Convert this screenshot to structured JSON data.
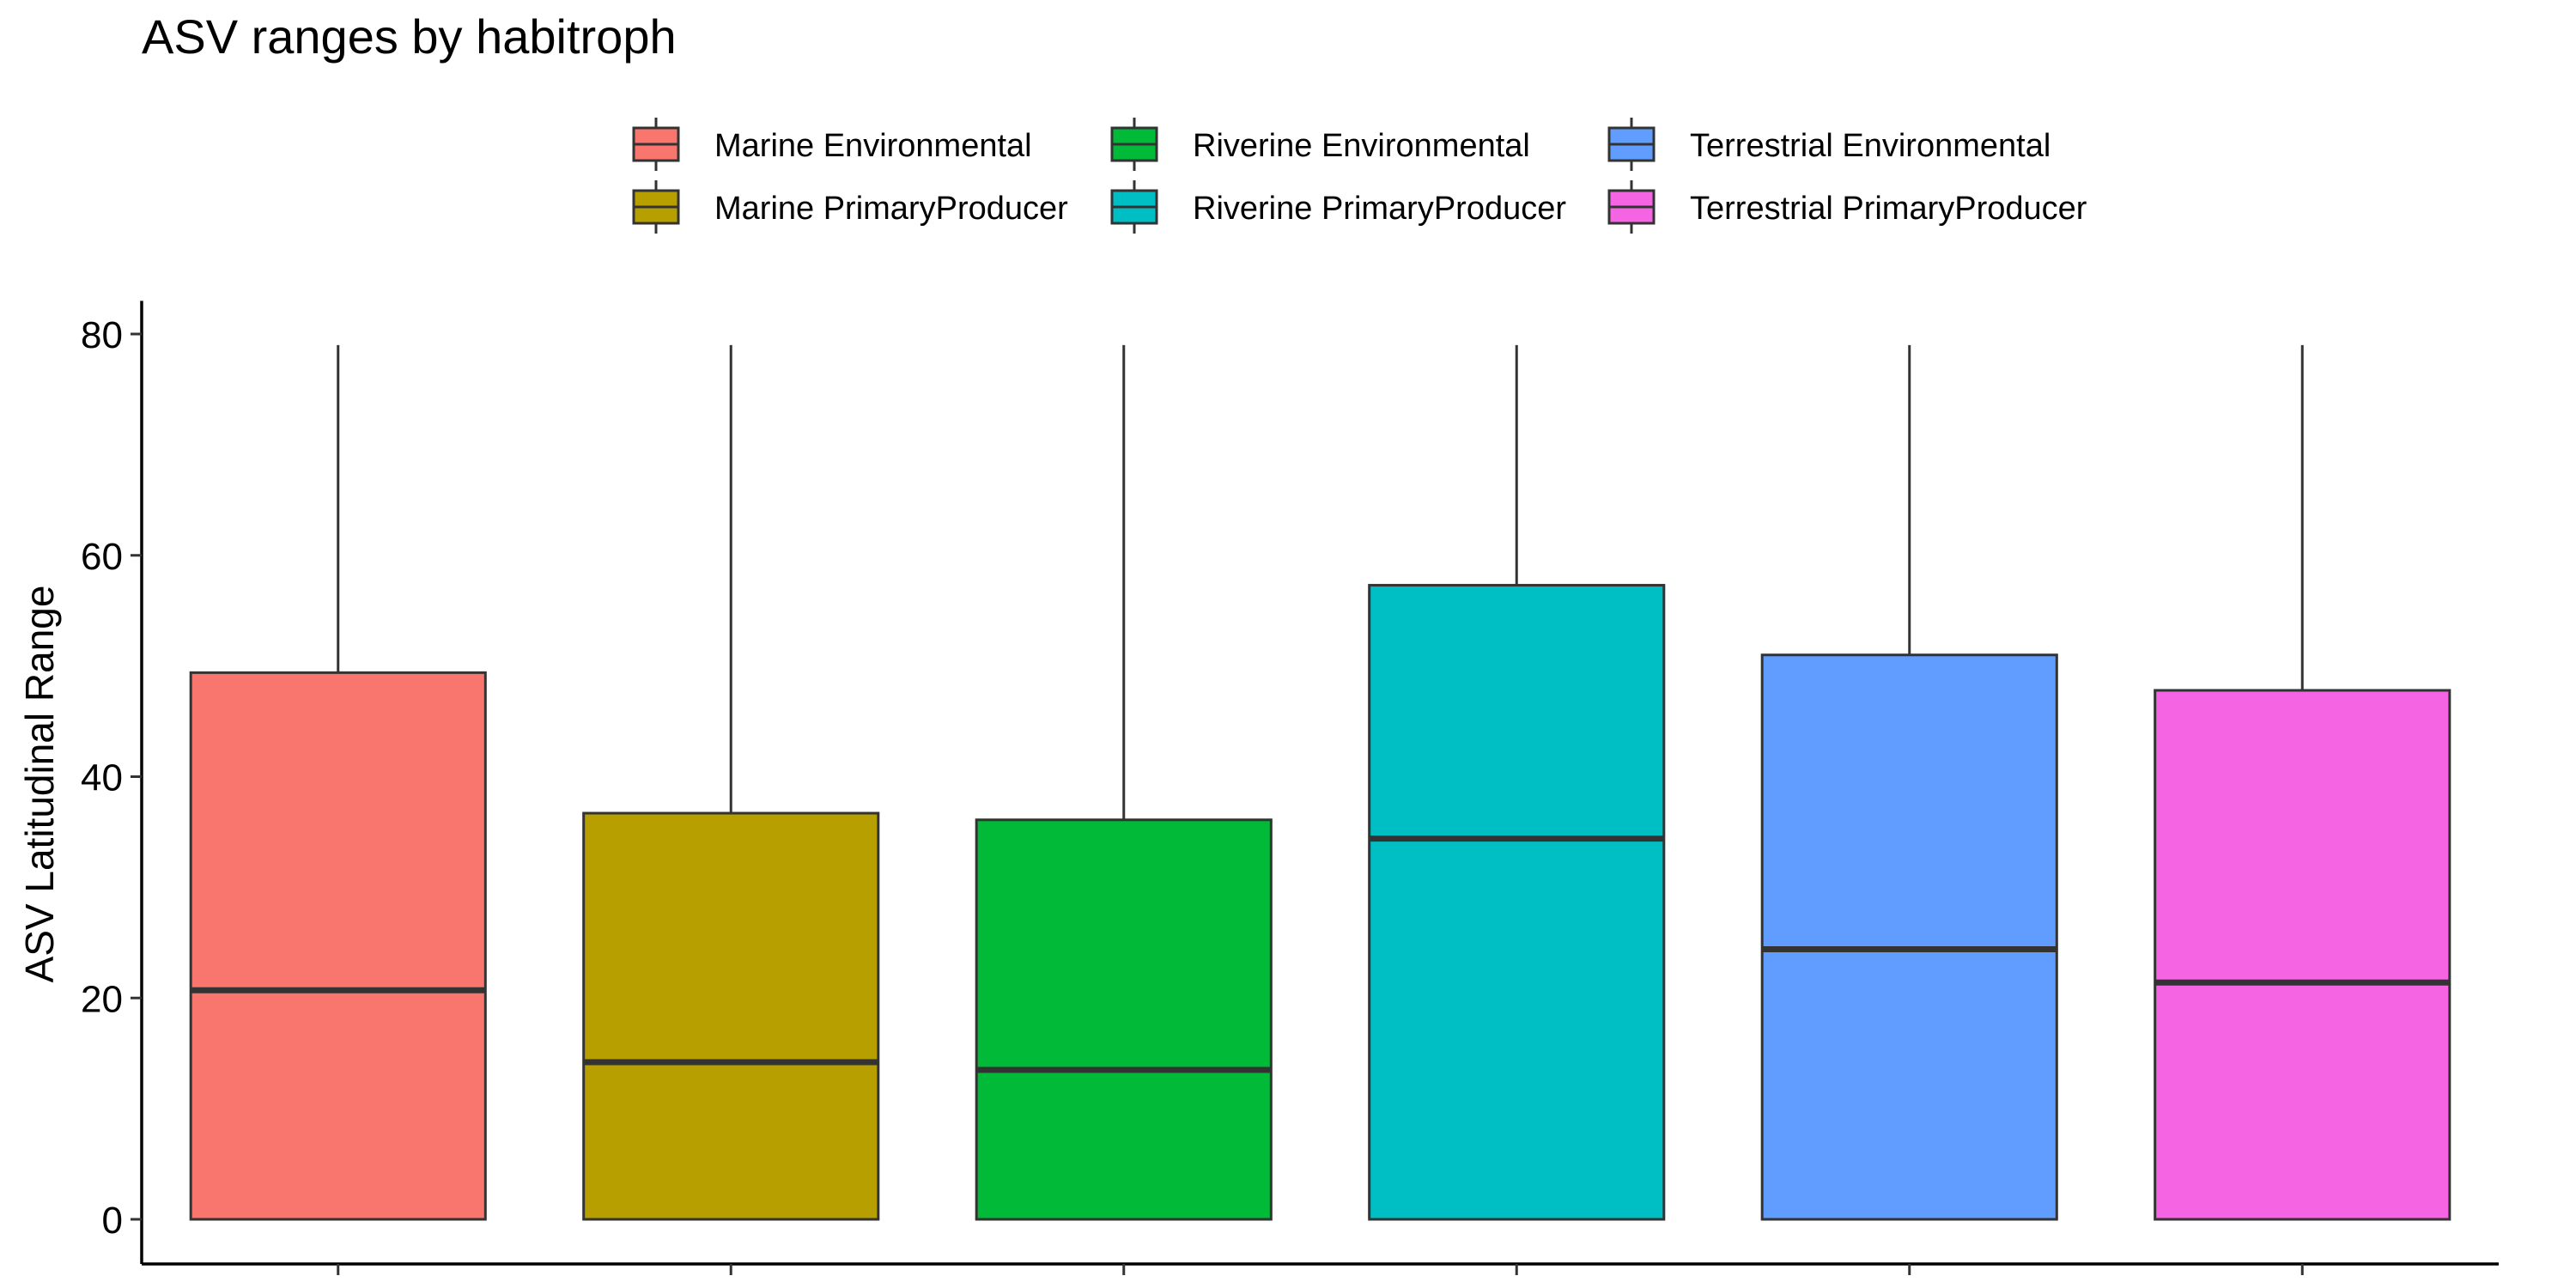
{
  "chart_data": {
    "type": "box",
    "title": "ASV ranges by habitroph",
    "xlabel": "",
    "ylabel": "ASV Latitudinal Range",
    "ylim": [
      -4,
      83
    ],
    "yticks": [
      0,
      20,
      40,
      60,
      80
    ],
    "legend_position": "top",
    "categories": [
      "Marine Environmental",
      "Marine PrimaryProducer",
      "Riverine Environmental",
      "Riverine PrimaryProducer",
      "Terrestrial Environmental",
      "Terrestrial PrimaryProducer"
    ],
    "series": [
      {
        "name": "Marine Environmental",
        "color": "#F8766D",
        "min": 0,
        "q1": 0,
        "median": 20.7,
        "q3": 49.4,
        "max": 79
      },
      {
        "name": "Marine PrimaryProducer",
        "color": "#B79F00",
        "min": 0,
        "q1": 0,
        "median": 14.2,
        "q3": 36.7,
        "max": 79
      },
      {
        "name": "Riverine Environmental",
        "color": "#00BA38",
        "min": 0,
        "q1": 0,
        "median": 13.5,
        "q3": 36.1,
        "max": 79
      },
      {
        "name": "Riverine PrimaryProducer",
        "color": "#00BFC4",
        "min": 0,
        "q1": 0,
        "median": 34.4,
        "q3": 57.3,
        "max": 79
      },
      {
        "name": "Terrestrial Environmental",
        "color": "#619CFF",
        "min": 0,
        "q1": 0,
        "median": 24.4,
        "q3": 51.0,
        "max": 79
      },
      {
        "name": "Terrestrial PrimaryProducer",
        "color": "#F564E3",
        "min": 0,
        "q1": 0,
        "median": 21.4,
        "q3": 47.8,
        "max": 79
      }
    ]
  }
}
